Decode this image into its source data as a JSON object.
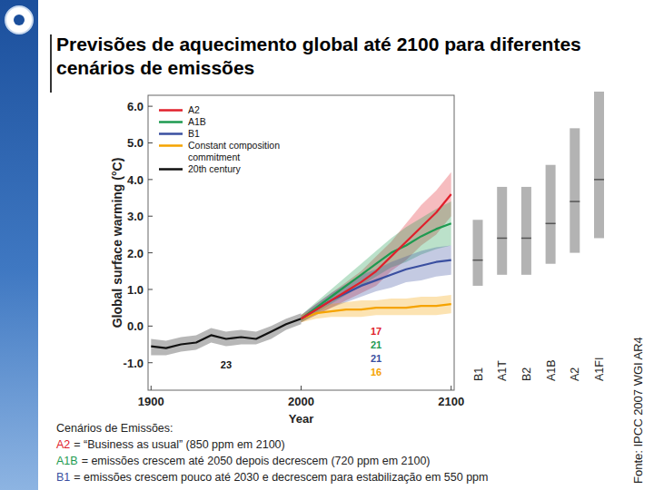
{
  "slide": {
    "title": "Previsões de aquecimento global até 2100 para diferentes cenários de emissões",
    "source": "Fonte: IPCC 2007 WGI AR4",
    "notes": {
      "heading": "Cenários de Emissões:",
      "items": [
        {
          "code": "A2",
          "color": "#e0202b",
          "text": "= “Business as usual” (850 ppm em 2100)"
        },
        {
          "code": "A1B",
          "color": "#1e9a50",
          "text": "= emissões crescem até 2050 depois decrescem (720 ppm em 2100)"
        },
        {
          "code": "B1",
          "color": "#3a4fa0",
          "text": "= emissões crescem pouco até 2030 e decrescem para estabilização em 550 ppm"
        }
      ]
    }
  },
  "chart_data": [
    {
      "type": "line",
      "xlabel": "Year",
      "ylabel": "Global surface warming (°C)",
      "x": [
        1900,
        1910,
        1920,
        1930,
        1940,
        1950,
        1960,
        1970,
        1980,
        1990,
        2000,
        2010,
        2020,
        2030,
        2040,
        2050,
        2060,
        2070,
        2080,
        2090,
        2100
      ],
      "xlim": [
        1898,
        2102
      ],
      "xticks": [
        1900,
        2000,
        2100
      ],
      "ylim": [
        -1.75,
        6.3
      ],
      "yticks": [
        {
          "value": -1,
          "label": "-1.0"
        },
        {
          "value": 0,
          "label": "0.0"
        },
        {
          "value": 1,
          "label": "1.0"
        },
        {
          "value": 2,
          "label": "2.0"
        },
        {
          "value": 3,
          "label": "3.0"
        },
        {
          "value": 4,
          "label": "4.0"
        },
        {
          "value": 5,
          "label": "5.0"
        },
        {
          "value": 6,
          "label": "6.0"
        }
      ],
      "grid": false,
      "legend": "upper left",
      "series": [
        {
          "name": "A2",
          "color": "#e0202b",
          "models": 17,
          "values": [
            null,
            null,
            null,
            null,
            null,
            null,
            null,
            null,
            null,
            null,
            0.2,
            0.45,
            0.7,
            0.95,
            1.2,
            1.5,
            1.9,
            2.3,
            2.7,
            3.1,
            3.6
          ],
          "lower": [
            null,
            null,
            null,
            null,
            null,
            null,
            null,
            null,
            null,
            null,
            0.1,
            0.3,
            0.5,
            0.7,
            0.9,
            1.1,
            1.5,
            1.8,
            2.2,
            2.5,
            3.0
          ],
          "upper": [
            null,
            null,
            null,
            null,
            null,
            null,
            null,
            null,
            null,
            null,
            0.3,
            0.6,
            0.9,
            1.2,
            1.5,
            1.9,
            2.3,
            2.8,
            3.3,
            3.7,
            4.2
          ]
        },
        {
          "name": "A1B",
          "color": "#1e9a50",
          "models": 21,
          "values": [
            null,
            null,
            null,
            null,
            null,
            null,
            null,
            null,
            null,
            null,
            0.2,
            0.5,
            0.8,
            1.1,
            1.4,
            1.7,
            2.0,
            2.2,
            2.45,
            2.65,
            2.8
          ],
          "lower": [
            null,
            null,
            null,
            null,
            null,
            null,
            null,
            null,
            null,
            null,
            0.1,
            0.35,
            0.6,
            0.85,
            1.1,
            1.35,
            1.6,
            1.75,
            1.95,
            2.1,
            2.2
          ],
          "upper": [
            null,
            null,
            null,
            null,
            null,
            null,
            null,
            null,
            null,
            null,
            0.3,
            0.65,
            1.0,
            1.35,
            1.7,
            2.05,
            2.4,
            2.7,
            2.95,
            3.2,
            3.4
          ]
        },
        {
          "name": "B1",
          "color": "#3a4fa0",
          "models": 21,
          "values": [
            null,
            null,
            null,
            null,
            null,
            null,
            null,
            null,
            null,
            null,
            0.2,
            0.45,
            0.7,
            0.9,
            1.1,
            1.25,
            1.4,
            1.55,
            1.65,
            1.75,
            1.8
          ],
          "lower": [
            null,
            null,
            null,
            null,
            null,
            null,
            null,
            null,
            null,
            null,
            0.1,
            0.3,
            0.5,
            0.65,
            0.8,
            0.95,
            1.05,
            1.2,
            1.25,
            1.35,
            1.4
          ],
          "upper": [
            null,
            null,
            null,
            null,
            null,
            null,
            null,
            null,
            null,
            null,
            0.3,
            0.6,
            0.9,
            1.15,
            1.4,
            1.55,
            1.75,
            1.9,
            2.05,
            2.15,
            2.2
          ]
        },
        {
          "name": "Constant composition commitment",
          "color": "#f5a300",
          "models": 16,
          "values": [
            null,
            null,
            null,
            null,
            null,
            null,
            null,
            null,
            null,
            null,
            0.2,
            0.35,
            0.4,
            0.45,
            0.45,
            0.5,
            0.5,
            0.5,
            0.55,
            0.55,
            0.6
          ],
          "lower": [
            null,
            null,
            null,
            null,
            null,
            null,
            null,
            null,
            null,
            null,
            0.1,
            0.2,
            0.25,
            0.25,
            0.25,
            0.3,
            0.3,
            0.3,
            0.3,
            0.3,
            0.35
          ],
          "upper": [
            null,
            null,
            null,
            null,
            null,
            null,
            null,
            null,
            null,
            null,
            0.3,
            0.5,
            0.6,
            0.65,
            0.7,
            0.7,
            0.75,
            0.75,
            0.8,
            0.8,
            0.85
          ]
        },
        {
          "name": "20th century",
          "color": "#111111",
          "models": 23,
          "values": [
            -0.55,
            -0.6,
            -0.5,
            -0.45,
            -0.25,
            -0.35,
            -0.3,
            -0.35,
            -0.15,
            0.05,
            0.2,
            null,
            null,
            null,
            null,
            null,
            null,
            null,
            null,
            null,
            null
          ],
          "lower": [
            -0.8,
            -0.8,
            -0.7,
            -0.65,
            -0.45,
            -0.55,
            -0.5,
            -0.5,
            -0.35,
            -0.1,
            0.05,
            null,
            null,
            null,
            null,
            null,
            null,
            null,
            null,
            null,
            null
          ],
          "upper": [
            -0.35,
            -0.4,
            -0.3,
            -0.25,
            -0.05,
            -0.15,
            -0.1,
            -0.15,
            0.0,
            0.2,
            0.35,
            null,
            null,
            null,
            null,
            null,
            null,
            null,
            null,
            null,
            null
          ]
        }
      ]
    },
    {
      "type": "range",
      "categories": [
        "B1",
        "A1T",
        "B2",
        "A1B",
        "A2",
        "A1FI"
      ],
      "low": [
        1.1,
        1.4,
        1.4,
        1.7,
        2.0,
        2.4
      ],
      "best": [
        1.8,
        2.4,
        2.4,
        2.8,
        3.4,
        4.0
      ],
      "high": [
        2.9,
        3.8,
        3.8,
        4.4,
        5.4,
        6.4
      ],
      "ylim": [
        -1.75,
        6.3
      ],
      "color": "#b3b3b3",
      "tick_labels": "x"
    }
  ]
}
